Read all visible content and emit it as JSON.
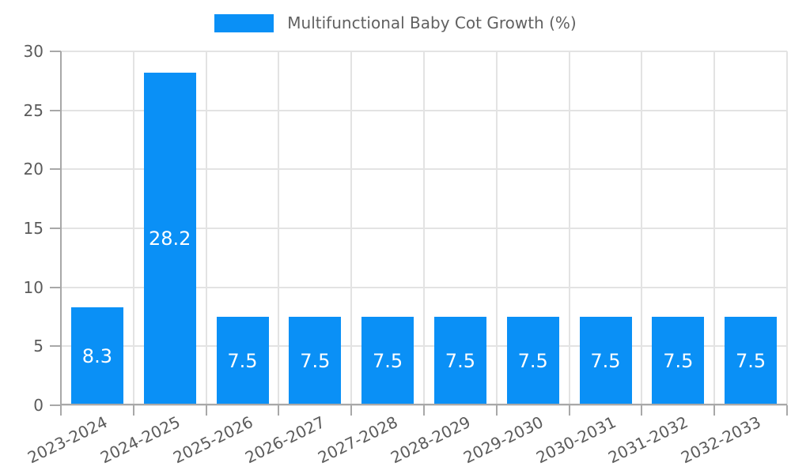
{
  "chart_data": {
    "type": "bar",
    "title": "",
    "legend_position": "top",
    "categories": [
      "2023-2024",
      "2024-2025",
      "2025-2026",
      "2026-2027",
      "2027-2028",
      "2028-2029",
      "2029-2030",
      "2030-2031",
      "2031-2032",
      "2032-2033"
    ],
    "series": [
      {
        "name": "Multifunctional Baby Cot Growth (%)",
        "color": "#0a90f6",
        "values": [
          8.3,
          28.2,
          7.5,
          7.5,
          7.5,
          7.5,
          7.5,
          7.5,
          7.5,
          7.5
        ]
      }
    ],
    "xlabel": "",
    "ylabel": "",
    "ylim": [
      0,
      30
    ],
    "yticks": [
      0,
      5,
      10,
      15,
      20,
      25,
      30
    ],
    "grid": true,
    "value_labels_position": "center",
    "value_labels_color": "#ffffff"
  },
  "legend": {
    "label": "Multifunctional Baby Cot Growth (%)"
  },
  "colors": {
    "bar": "#0a90f6",
    "tick_text": "#5b5b5b",
    "legend_text": "#616161",
    "grid_line": "#e3e3e3",
    "axis_line": "#a8a8a8",
    "value_label": "#ffffff",
    "background": "#ffffff"
  }
}
